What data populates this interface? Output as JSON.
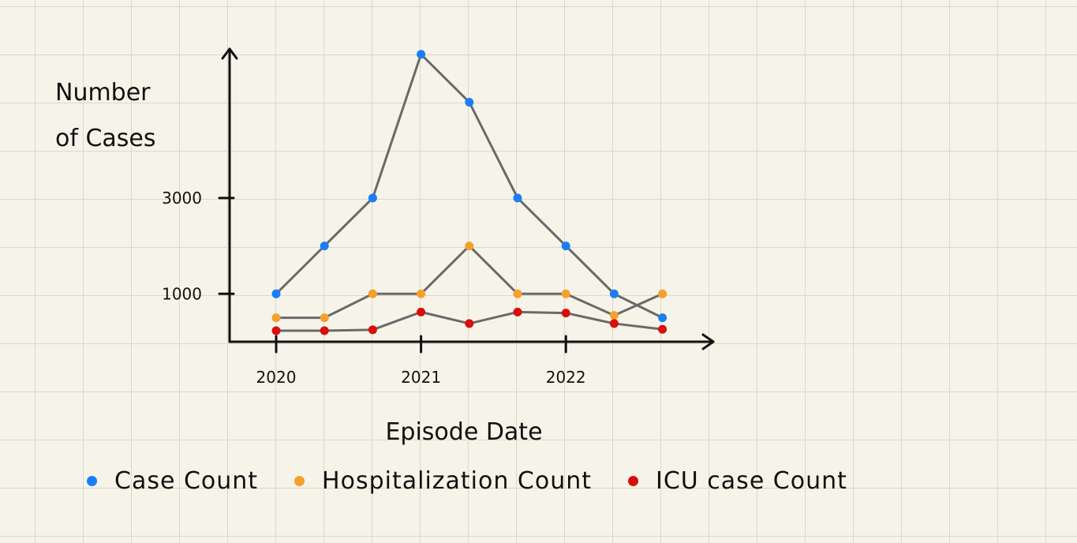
{
  "chart_data": {
    "type": "line",
    "ylabel_line1": "Number",
    "ylabel_line2": "of Cases",
    "xlabel": "Episode Date",
    "x": [
      0,
      1,
      2,
      3,
      4,
      5,
      6,
      7,
      8
    ],
    "xticks": [
      {
        "pos": 0,
        "label": "2020"
      },
      {
        "pos": 3,
        "label": "2021"
      },
      {
        "pos": 6,
        "label": "2022"
      }
    ],
    "yticks": [
      {
        "value": 1000,
        "label": "1000"
      },
      {
        "value": 3000,
        "label": "3000"
      }
    ],
    "ylim": [
      0,
      6000
    ],
    "grid": true,
    "legend_position": "bottom",
    "series": [
      {
        "name": "Case Count",
        "color": "#1a7ff5",
        "values": [
          1000,
          2000,
          3000,
          6000,
          5000,
          3000,
          2000,
          1000,
          500
        ]
      },
      {
        "name": "Hospitalization Count",
        "color": "#f4a12c",
        "values": [
          500,
          500,
          1000,
          1000,
          2000,
          1000,
          1000,
          550,
          1000
        ]
      },
      {
        "name": "ICU case Count",
        "color": "#d90e0e",
        "values": [
          230,
          230,
          250,
          620,
          380,
          620,
          600,
          380,
          260
        ]
      }
    ]
  }
}
